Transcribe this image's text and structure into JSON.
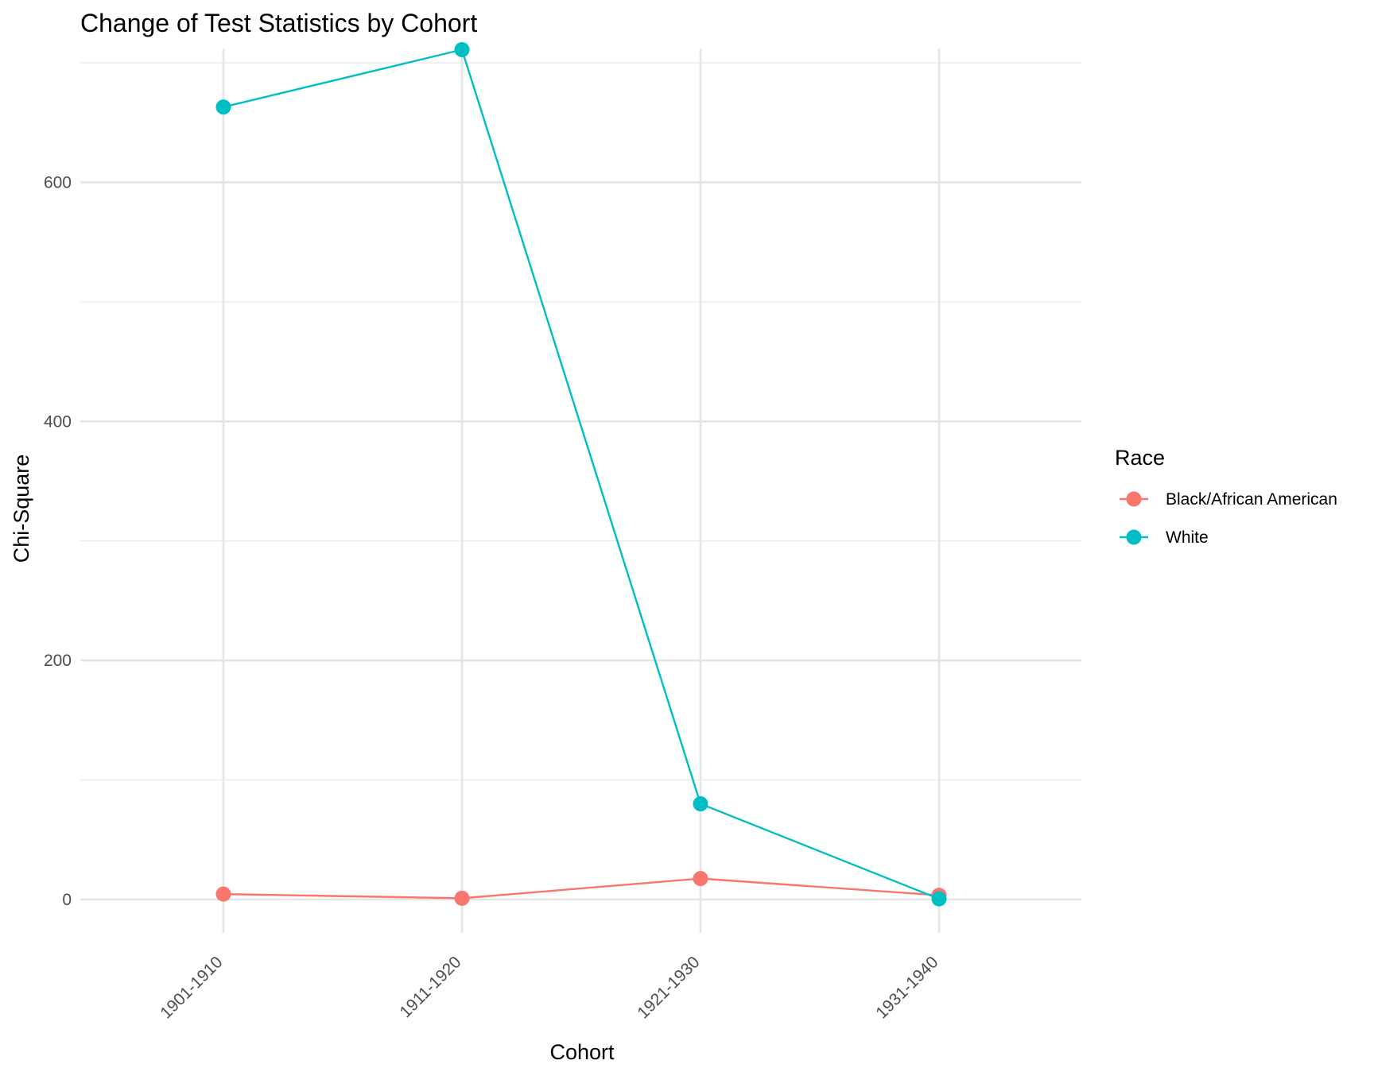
{
  "chart_data": {
    "type": "line",
    "title": "Change of Test Statistics by Cohort",
    "xlabel": "Cohort",
    "ylabel": "Chi-Square",
    "categories": [
      "1901-1910",
      "1911-1920",
      "1921-1930",
      "1931-1940"
    ],
    "ylim": [
      -28,
      712
    ],
    "yticks": [
      0,
      200,
      400,
      600
    ],
    "grid": true,
    "legend": {
      "title": "Race",
      "placement": "right"
    },
    "series": [
      {
        "name": "Black/African American",
        "color": "#F8766D",
        "values": [
          4.5,
          1.0,
          17.5,
          3.5
        ]
      },
      {
        "name": "White",
        "color": "#00BFC4",
        "values": [
          663,
          711,
          80,
          0.5
        ]
      }
    ]
  }
}
